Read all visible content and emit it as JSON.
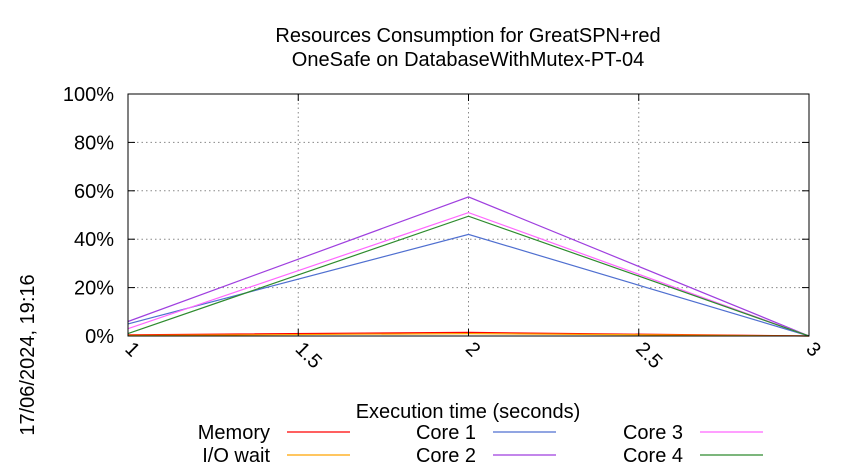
{
  "chart_data": {
    "type": "line",
    "title_lines": [
      "Resources Consumption for GreatSPN+red",
      "OneSafe on DatabaseWithMutex-PT-04"
    ],
    "xlabel": "Execution time (seconds)",
    "ylabel": "",
    "side_label": "17/06/2024, 19:16",
    "x": [
      1,
      2,
      3
    ],
    "xlim": [
      1,
      3
    ],
    "ylim": [
      0,
      100
    ],
    "x_ticks": [
      1,
      1.5,
      2,
      2.5,
      3
    ],
    "x_tick_labels": [
      "1",
      "1.5",
      "2",
      "2.5",
      "3"
    ],
    "y_ticks": [
      0,
      20,
      40,
      60,
      80,
      100
    ],
    "y_tick_labels": [
      "0%",
      "20%",
      "40%",
      "60%",
      "80%",
      "100%"
    ],
    "grid": true,
    "legend_position": "bottom",
    "series": [
      {
        "name": "Memory",
        "color": "#ff0000",
        "values": [
          0.5,
          1.5,
          0
        ]
      },
      {
        "name": "I/O wait",
        "color": "#ffa500",
        "values": [
          0.2,
          1.0,
          0
        ]
      },
      {
        "name": "Core 1",
        "color": "#4f6fd0",
        "values": [
          5,
          42,
          0
        ]
      },
      {
        "name": "Core 2",
        "color": "#9f3fdf",
        "values": [
          6,
          57.5,
          0
        ]
      },
      {
        "name": "Core 3",
        "color": "#ff66ff",
        "values": [
          3,
          51,
          0
        ]
      },
      {
        "name": "Core 4",
        "color": "#2e8b2e",
        "values": [
          1,
          49.5,
          0
        ]
      }
    ]
  }
}
